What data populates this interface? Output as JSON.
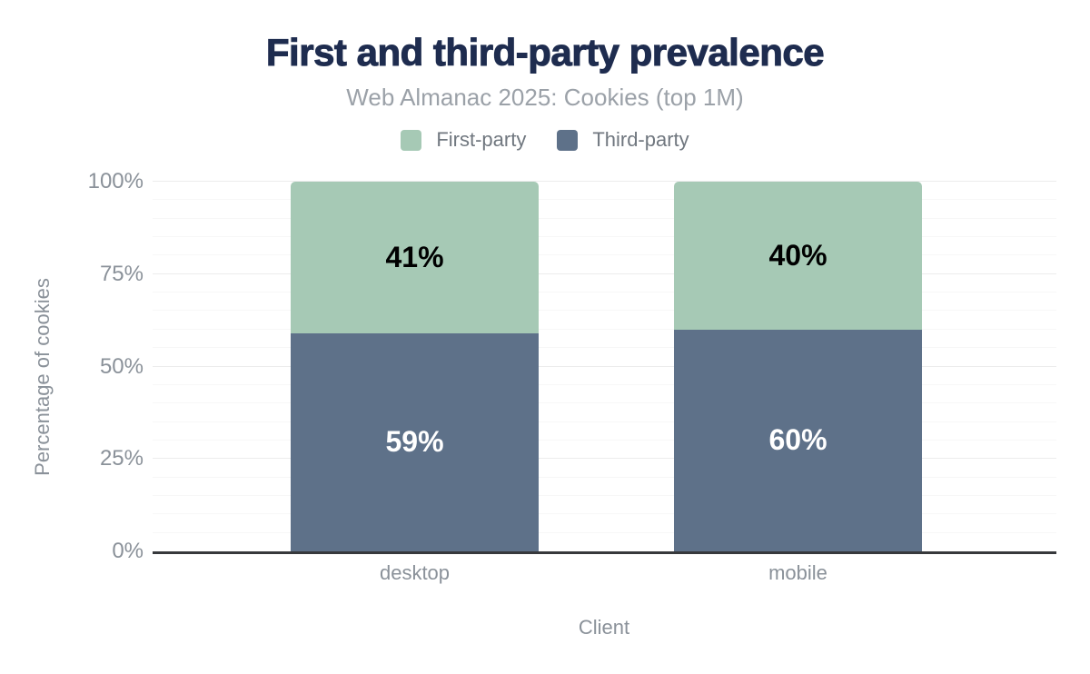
{
  "chart_data": {
    "type": "bar",
    "stacked": true,
    "title": "First and third-party prevalence",
    "subtitle": "Web Almanac 2025: Cookies (top 1M)",
    "xlabel": "Client",
    "ylabel": "Percentage of cookies",
    "categories": [
      "desktop",
      "mobile"
    ],
    "series": [
      {
        "name": "First-party",
        "color": "#a6c9b5",
        "text_color": "#000000",
        "values": [
          41,
          40
        ],
        "labels": [
          "41%",
          "40%"
        ]
      },
      {
        "name": "Third-party",
        "color": "#5e7189",
        "text_color": "#ffffff",
        "values": [
          59,
          60
        ],
        "labels": [
          "59%",
          "60%"
        ]
      }
    ],
    "ylim": [
      0,
      100
    ],
    "yticks": [
      {
        "value": 0,
        "label": "0%"
      },
      {
        "value": 25,
        "label": "25%"
      },
      {
        "value": 50,
        "label": "50%"
      },
      {
        "value": 75,
        "label": "75%"
      },
      {
        "value": 100,
        "label": "100%"
      }
    ],
    "ytick_minor_step": 5,
    "ytick_major_step": 25,
    "legend_position": "top",
    "grid": "horizontal"
  },
  "colors": {
    "title": "#1e2c4f",
    "subtitle": "#9ba1a8",
    "axis_text": "#8a9199",
    "legend_text": "#70777f",
    "axis_line": "#37393c",
    "grid_major": "#ececec",
    "grid_minor": "#f7f7f7"
  }
}
